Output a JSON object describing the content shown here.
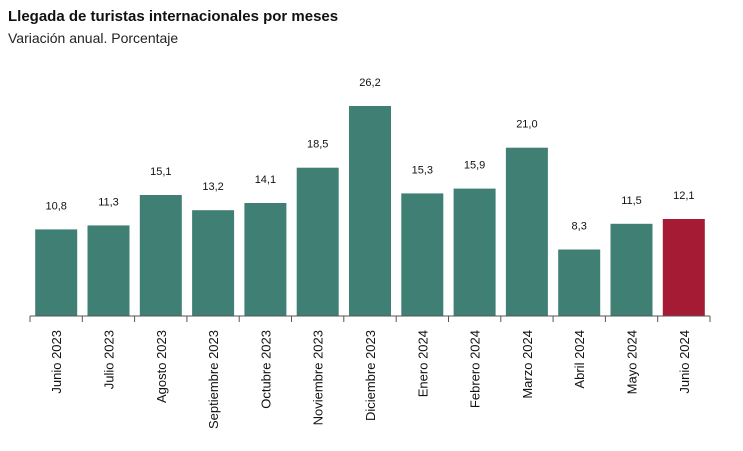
{
  "chart_data": {
    "type": "bar",
    "title": "Llegada de turistas internacionales por meses",
    "subtitle": "Variación anual. Porcentaje",
    "categories": [
      "Junio 2023",
      "Julio 2023",
      "Agosto 2023",
      "Septiembre 2023",
      "Octubre 2023",
      "Noviembre 2023",
      "Diciembre 2023",
      "Enero 2024",
      "Febrero 2024",
      "Marzo 2024",
      "Abril 2024",
      "Mayo 2024",
      "Junio 2024"
    ],
    "values": [
      10.8,
      11.3,
      15.1,
      13.2,
      14.1,
      18.5,
      26.2,
      15.3,
      15.9,
      21.0,
      8.3,
      11.5,
      12.1
    ],
    "value_labels": [
      "10,8",
      "11,3",
      "15,1",
      "13,2",
      "14,1",
      "18,5",
      "26,2",
      "15,3",
      "15,9",
      "21,0",
      "8,3",
      "11,5",
      "12,1"
    ],
    "ylim": [
      0,
      30
    ],
    "grid": false,
    "colors": {
      "default": "#3f7f74",
      "highlight": "#a51b34"
    },
    "highlight_index": 12
  }
}
